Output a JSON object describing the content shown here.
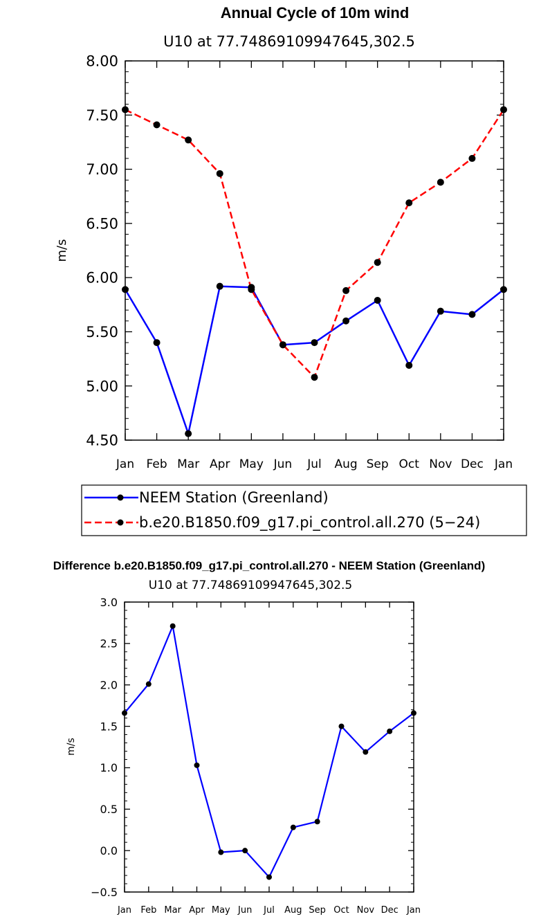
{
  "chart_data": [
    {
      "type": "line",
      "title": "Annual Cycle of 10m wind",
      "subtitle": "U10  at  77.74869109947645,302.5",
      "xlabel": "",
      "ylabel": "m/s",
      "categories": [
        "Jan",
        "Feb",
        "Mar",
        "Apr",
        "May",
        "Jun",
        "Jul",
        "Aug",
        "Sep",
        "Oct",
        "Nov",
        "Dec",
        "Jan"
      ],
      "ylim": [
        4.5,
        8.0
      ],
      "yticks": [
        "4.50",
        "5.00",
        "5.50",
        "6.00",
        "6.50",
        "7.00",
        "7.50",
        "8.00"
      ],
      "legend_position": "bottom",
      "series": [
        {
          "name": "NEEM Station (Greenland)",
          "color": "#0000ff",
          "style": "solid",
          "values": [
            5.89,
            5.4,
            4.56,
            5.92,
            5.91,
            5.38,
            5.4,
            5.6,
            5.79,
            5.19,
            5.69,
            5.66,
            5.89
          ]
        },
        {
          "name": "b.e20.B1850.f09_g17.pi_control.all.270 (5−24)",
          "color": "#ff0000",
          "style": "dashed",
          "values": [
            7.55,
            7.41,
            7.27,
            6.96,
            5.89,
            5.38,
            5.08,
            5.88,
            6.14,
            6.69,
            6.88,
            7.1,
            7.55
          ]
        }
      ]
    },
    {
      "type": "line",
      "title": "Difference b.e20.B1850.f09_g17.pi_control.all.270 - NEEM Station (Greenland)",
      "subtitle": "U10  at  77.74869109947645,302.5",
      "xlabel": "",
      "ylabel": "m/s",
      "categories": [
        "Jan",
        "Feb",
        "Mar",
        "Apr",
        "May",
        "Jun",
        "Jul",
        "Aug",
        "Sep",
        "Oct",
        "Nov",
        "Dec",
        "Jan"
      ],
      "ylim": [
        -0.5,
        3.0
      ],
      "yticks": [
        "−0.5",
        "0.0",
        "0.5",
        "1.0",
        "1.5",
        "2.0",
        "2.5",
        "3.0"
      ],
      "series": [
        {
          "color": "#0000ff",
          "style": "solid",
          "values": [
            1.66,
            2.01,
            2.71,
            1.03,
            -0.02,
            0.0,
            -0.32,
            0.28,
            0.35,
            1.5,
            1.19,
            1.44,
            1.66
          ]
        }
      ]
    }
  ]
}
